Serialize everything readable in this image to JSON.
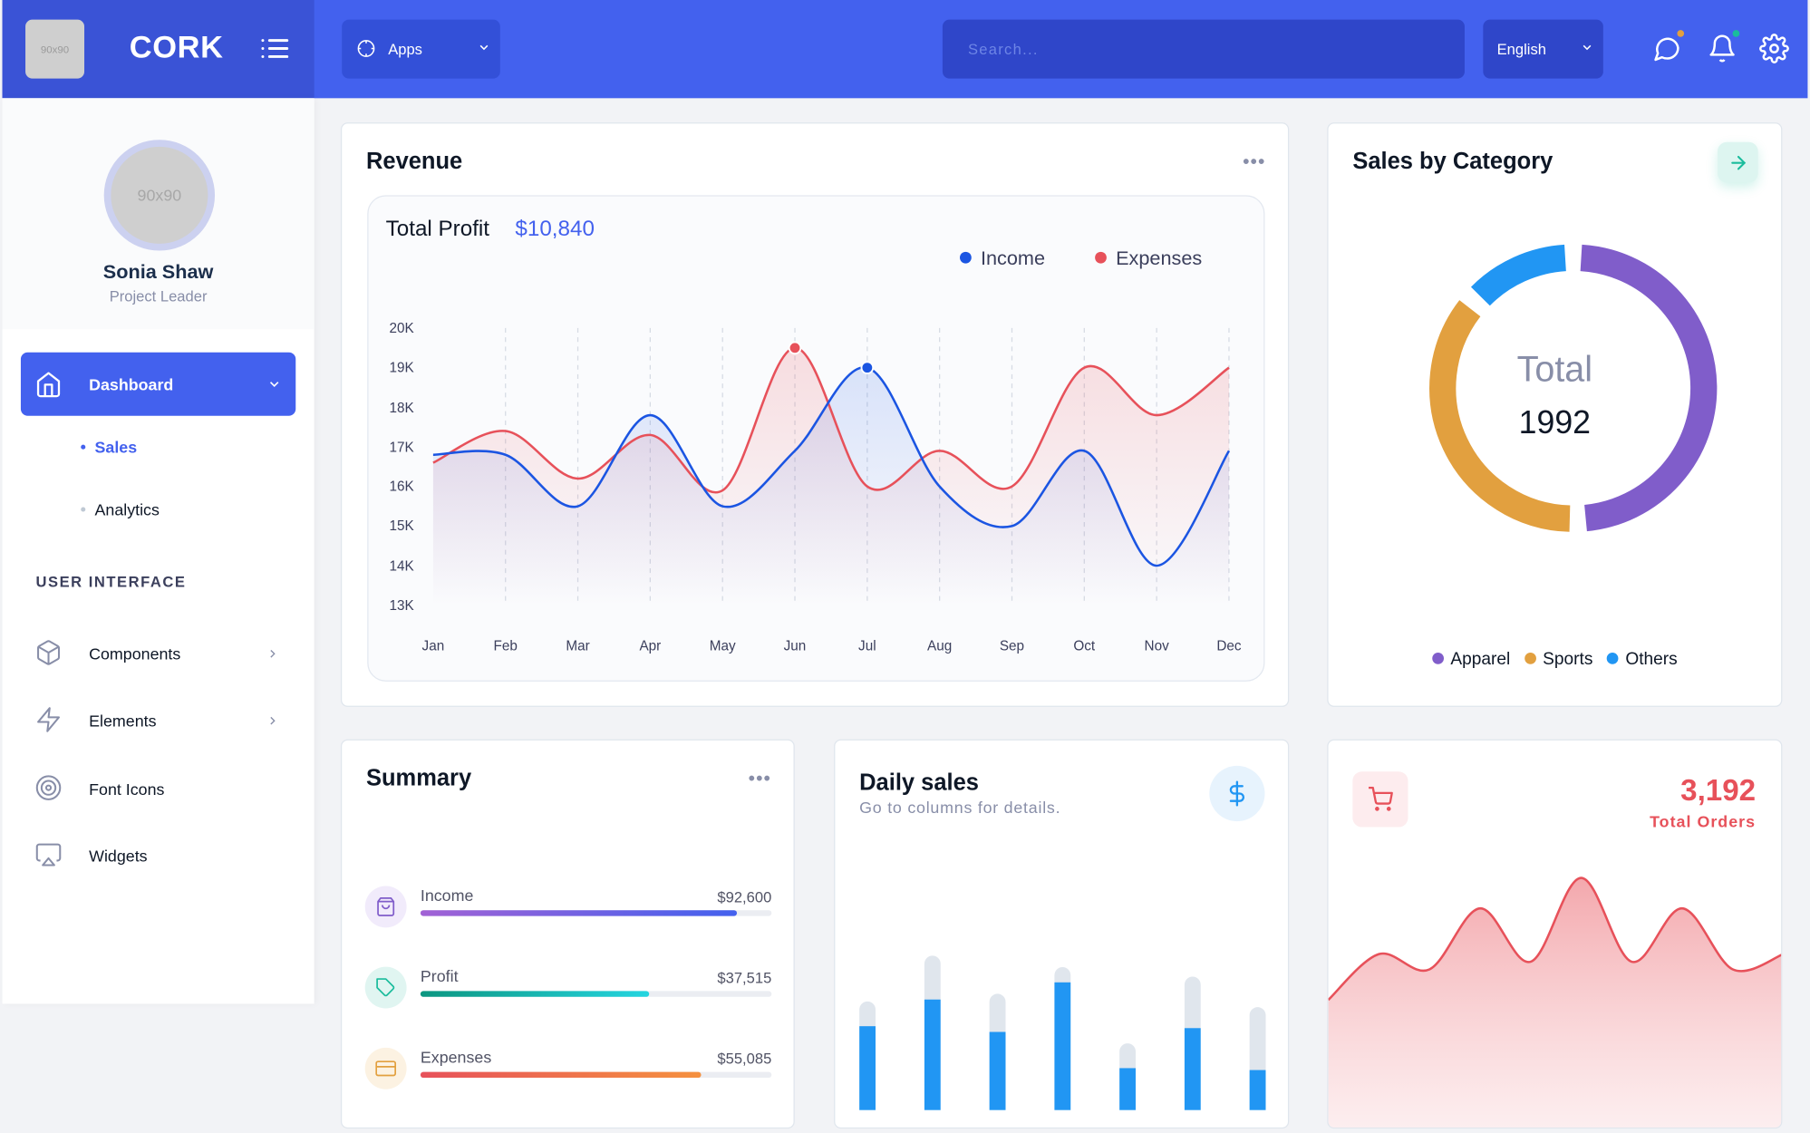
{
  "brand": {
    "logo_placeholder": "90x90",
    "name": "CORK"
  },
  "topbar": {
    "apps_label": "Apps",
    "search_placeholder": "Search...",
    "language": "English"
  },
  "colors": {
    "primary": "#4361ee",
    "income": "#1b55e2",
    "expenses": "#e7515a",
    "apparel": "#805dca",
    "sports": "#e2a03f",
    "others": "#2196f3",
    "success": "#1abc9c"
  },
  "sidebar": {
    "avatar_placeholder": "90x90",
    "user_name": "Sonia Shaw",
    "user_role": "Project Leader",
    "dashboard_label": "Dashboard",
    "sub_items": [
      {
        "label": "Sales",
        "active": true
      },
      {
        "label": "Analytics",
        "active": false
      }
    ],
    "section_heading": "USER INTERFACE",
    "items": [
      {
        "label": "Components",
        "icon": "box-icon",
        "has_children": true
      },
      {
        "label": "Elements",
        "icon": "zap-icon",
        "has_children": true
      },
      {
        "label": "Font Icons",
        "icon": "target-icon",
        "has_children": false
      },
      {
        "label": "Widgets",
        "icon": "airplay-icon",
        "has_children": false
      }
    ]
  },
  "revenue": {
    "title": "Revenue",
    "total_profit_label": "Total Profit",
    "total_profit_value": "$10,840",
    "legend": {
      "income": "Income",
      "expenses": "Expenses"
    }
  },
  "sales_by_category": {
    "title": "Sales by Category",
    "total_label": "Total",
    "total_value": "1992",
    "legend": [
      "Apparel",
      "Sports",
      "Others"
    ]
  },
  "summary": {
    "title": "Summary",
    "rows": [
      {
        "label": "Income",
        "value": "$92,600",
        "percent": 90
      },
      {
        "label": "Profit",
        "value": "$37,515",
        "percent": 65
      },
      {
        "label": "Expenses",
        "value": "$55,085",
        "percent": 80
      }
    ]
  },
  "daily_sales": {
    "title": "Daily sales",
    "subtitle": "Go to columns for details."
  },
  "total_orders": {
    "value": "3,192",
    "label": "Total Orders"
  },
  "chart_data": [
    {
      "type": "area",
      "title": "Revenue",
      "categories": [
        "Jan",
        "Feb",
        "Mar",
        "Apr",
        "May",
        "Jun",
        "Jul",
        "Aug",
        "Sep",
        "Oct",
        "Nov",
        "Dec"
      ],
      "yticks": [
        "20K",
        "19K",
        "18K",
        "17K",
        "16K",
        "15K",
        "14K",
        "13K"
      ],
      "ylim": [
        13000,
        20000
      ],
      "series": [
        {
          "name": "Income",
          "values": [
            16800,
            16800,
            15500,
            17800,
            15500,
            16900,
            19000,
            16000,
            15000,
            16900,
            14000,
            16900
          ]
        },
        {
          "name": "Expenses",
          "values": [
            16600,
            17400,
            16200,
            17300,
            15900,
            19500,
            16000,
            16900,
            16000,
            19000,
            17800,
            19000
          ]
        }
      ],
      "legend": "top-right",
      "grid": true
    },
    {
      "type": "pie",
      "title": "Sales by Category",
      "series": [
        {
          "name": "Apparel",
          "value": 985
        },
        {
          "name": "Sports",
          "value": 737
        },
        {
          "name": "Others",
          "value": 270
        }
      ]
    },
    {
      "type": "bar",
      "title": "Daily sales",
      "series": [
        {
          "name": "sales",
          "values": [
            44,
            58,
            41,
            67,
            22,
            43,
            21
          ]
        },
        {
          "name": "remaining",
          "values": [
            13,
            23,
            20,
            8,
            13,
            27,
            33
          ]
        }
      ],
      "stacked": true
    },
    {
      "type": "area",
      "title": "Total Orders",
      "values": [
        28,
        40,
        36,
        52,
        38,
        60,
        38,
        52,
        36,
        40
      ]
    }
  ]
}
